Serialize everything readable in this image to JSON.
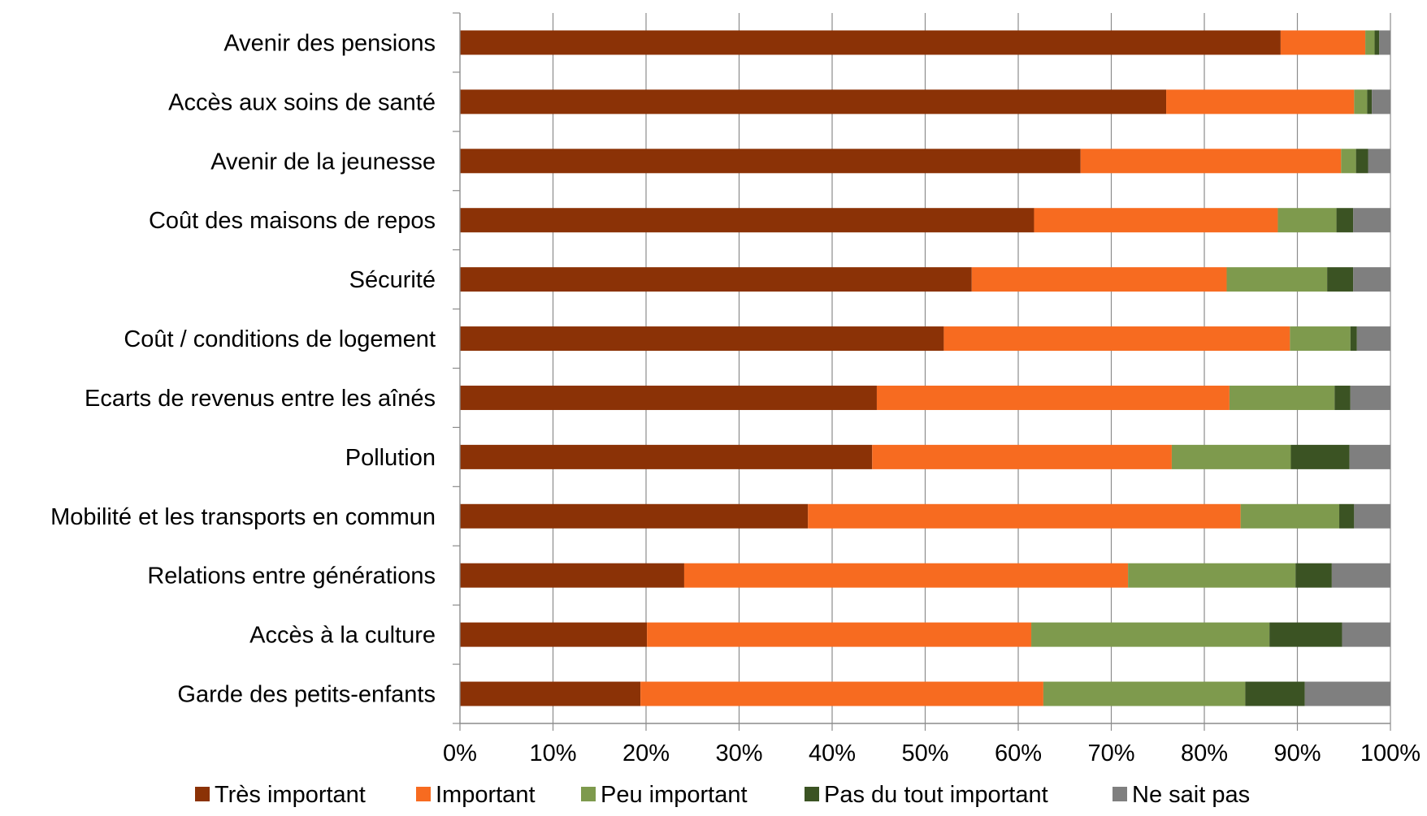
{
  "chart_data": {
    "type": "bar",
    "orientation": "horizontal",
    "stacked": "percent",
    "categories": [
      "Avenir des pensions",
      "Accès aux soins de santé",
      "Avenir de la jeunesse",
      "Coût des maisons de repos",
      "Sécurité",
      "Coût / conditions de logement",
      "Ecarts de revenus entre les aînés",
      "Pollution",
      "Mobilité et les transports en commun",
      "Relations entre générations",
      "Accès à la culture",
      "Garde des petits-enfants"
    ],
    "series": [
      {
        "name": "Très important",
        "color": "#8B3206",
        "values": [
          88.2,
          75.9,
          66.7,
          61.7,
          55.0,
          52.0,
          44.8,
          44.3,
          37.4,
          24.1,
          20.1,
          19.4
        ]
      },
      {
        "name": "Important",
        "color": "#F76B20",
        "values": [
          9.1,
          20.2,
          28.0,
          26.2,
          27.4,
          37.2,
          37.9,
          32.2,
          46.5,
          47.7,
          41.3,
          43.3
        ]
      },
      {
        "name": "Peu important",
        "color": "#7E9A4D",
        "values": [
          1.0,
          1.4,
          1.6,
          6.3,
          10.8,
          6.5,
          11.3,
          12.8,
          10.6,
          18.0,
          25.6,
          21.7
        ]
      },
      {
        "name": "Pas du tout important",
        "color": "#3B5323",
        "values": [
          0.5,
          0.5,
          1.3,
          1.8,
          2.8,
          0.7,
          1.7,
          6.3,
          1.6,
          3.9,
          7.8,
          6.4
        ]
      },
      {
        "name": "Ne sait pas",
        "color": "#7F7F7F",
        "values": [
          1.2,
          2.0,
          2.4,
          4.0,
          4.0,
          3.6,
          4.3,
          4.4,
          3.9,
          6.3,
          5.2,
          9.2
        ]
      }
    ],
    "xlim": [
      0,
      100
    ],
    "x_ticks": [
      "0%",
      "10%",
      "20%",
      "30%",
      "40%",
      "50%",
      "60%",
      "70%",
      "80%",
      "90%",
      "100%"
    ],
    "grid": "vertical",
    "legend_position": "bottom",
    "title": "",
    "xlabel": "",
    "ylabel": ""
  }
}
